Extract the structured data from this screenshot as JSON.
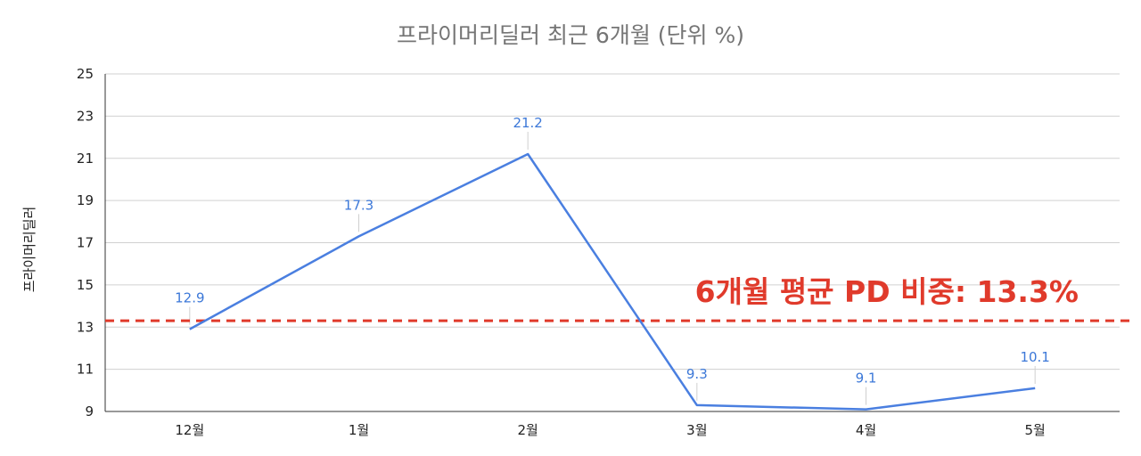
{
  "chart_data": {
    "type": "line",
    "title": "프라이머리딜러 최근 6개월 (단위 %)",
    "xlabel": "",
    "ylabel": "프라이머리딜러",
    "categories": [
      "12월",
      "1월",
      "2월",
      "3월",
      "4월",
      "5월"
    ],
    "series": [
      {
        "values": [
          12.9,
          17.3,
          21.2,
          9.3,
          9.1,
          10.1
        ],
        "color": "#4a7fe0"
      }
    ],
    "data_labels": [
      "12.9",
      "17.3",
      "21.2",
      "9.3",
      "9.1",
      "10.1"
    ],
    "ylim": [
      9,
      25
    ],
    "yticks": [
      "9",
      "11",
      "13",
      "15",
      "17",
      "19",
      "21",
      "23",
      "25"
    ],
    "grid": true,
    "reference_line": {
      "value": 13.3,
      "label": "6개월 평균 PD 비중: 13.3%",
      "color": "#e03a2b",
      "style": "dashed"
    }
  }
}
